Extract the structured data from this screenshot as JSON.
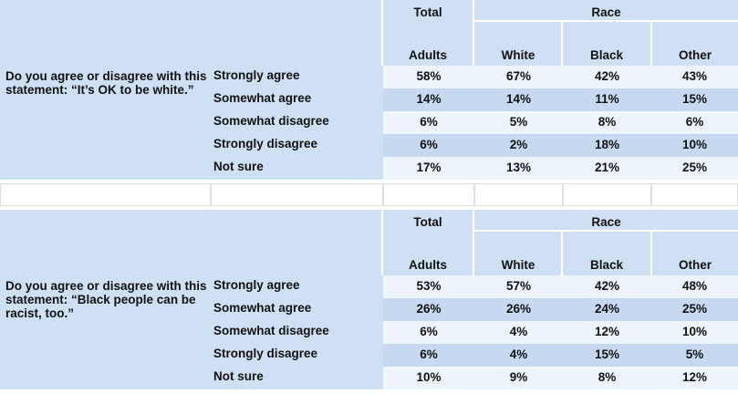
{
  "tables": [
    {
      "total_header": "Total",
      "race_header": "Race",
      "columns": [
        "Adults",
        "White",
        "Black",
        "Other"
      ],
      "question": "Do you agree or disagree with this statement: “It’s OK to be white.”",
      "rows": [
        {
          "label": "Strongly agree",
          "values": [
            "58%",
            "67%",
            "42%",
            "43%"
          ]
        },
        {
          "label": "Somewhat agree",
          "values": [
            "14%",
            "14%",
            "11%",
            "15%"
          ]
        },
        {
          "label": "Somewhat disagree",
          "values": [
            "6%",
            "5%",
            "8%",
            "6%"
          ]
        },
        {
          "label": "Strongly disagree",
          "values": [
            "6%",
            "2%",
            "18%",
            "10%"
          ]
        },
        {
          "label": "Not sure",
          "values": [
            "17%",
            "13%",
            "21%",
            "25%"
          ]
        }
      ]
    },
    {
      "total_header": "Total",
      "race_header": "Race",
      "columns": [
        "Adults",
        "White",
        "Black",
        "Other"
      ],
      "question": "Do you agree or disagree with this statement: “Black people can be racist, too.”",
      "rows": [
        {
          "label": "Strongly agree",
          "values": [
            "53%",
            "57%",
            "42%",
            "48%"
          ]
        },
        {
          "label": "Somewhat agree",
          "values": [
            "26%",
            "26%",
            "24%",
            "25%"
          ]
        },
        {
          "label": "Somewhat disagree",
          "values": [
            "6%",
            "4%",
            "12%",
            "10%"
          ]
        },
        {
          "label": "Strongly disagree",
          "values": [
            "6%",
            "4%",
            "15%",
            "5%"
          ]
        },
        {
          "label": "Not sure",
          "values": [
            "10%",
            "9%",
            "8%",
            "12%"
          ]
        }
      ]
    }
  ]
}
